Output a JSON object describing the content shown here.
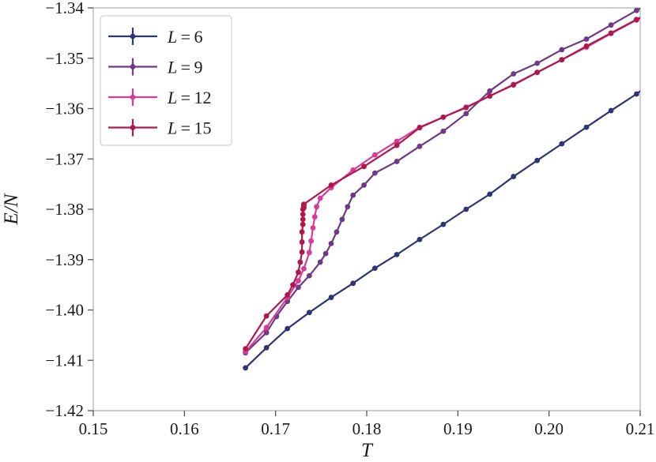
{
  "chart_data": {
    "type": "line",
    "title": "",
    "xlabel": "T",
    "ylabel": "E/N",
    "xlim": [
      0.15,
      0.21
    ],
    "ylim": [
      -1.42,
      -1.34
    ],
    "xticks": [
      0.15,
      0.16,
      0.17,
      0.18,
      0.19,
      0.2,
      0.21
    ],
    "xtick_labels": [
      "0.15",
      "0.16",
      "0.17",
      "0.18",
      "0.19",
      "0.20",
      "0.21"
    ],
    "yticks": [
      -1.42,
      -1.41,
      -1.4,
      -1.39,
      -1.38,
      -1.37,
      -1.36,
      -1.35,
      -1.34
    ],
    "ytick_labels": [
      "-1.42",
      "-1.41",
      "-1.40",
      "-1.39",
      "-1.38",
      "-1.37",
      "-1.36",
      "-1.35",
      "-1.34"
    ],
    "grid": false,
    "legend_position": "top-left",
    "series": [
      {
        "name": "L = 6",
        "legend_var": "L",
        "legend_val": "6",
        "color": "#2f3472",
        "x": [
          0.1667,
          0.169,
          0.1713,
          0.1737,
          0.1761,
          0.1785,
          0.1809,
          0.1833,
          0.1858,
          0.1884,
          0.1909,
          0.1935,
          0.1961,
          0.1987,
          0.2014,
          0.2041,
          0.2068,
          0.2096,
          0.2124
        ],
        "y": [
          -1.4115,
          -1.4075,
          -1.4037,
          -1.4005,
          -1.3975,
          -1.3947,
          -1.3917,
          -1.389,
          -1.386,
          -1.383,
          -1.38,
          -1.377,
          -1.3735,
          -1.3703,
          -1.367,
          -1.3637,
          -1.3604,
          -1.3571,
          -1.3533
        ]
      },
      {
        "name": "L = 9",
        "legend_var": "L",
        "legend_val": "9",
        "color": "#6e3a86",
        "x": [
          0.1667,
          0.169,
          0.1701,
          0.1713,
          0.1725,
          0.1737,
          0.1749,
          0.1755,
          0.1761,
          0.1767,
          0.1773,
          0.1779,
          0.1785,
          0.1797,
          0.1809,
          0.1833,
          0.1858,
          0.1884,
          0.1909,
          0.1935,
          0.1961,
          0.1987,
          0.2014,
          0.2041,
          0.2068,
          0.2096,
          0.2124
        ],
        "y": [
          -1.4085,
          -1.4045,
          -1.4013,
          -1.3983,
          -1.3955,
          -1.3932,
          -1.3905,
          -1.3888,
          -1.3868,
          -1.3845,
          -1.382,
          -1.3795,
          -1.3772,
          -1.3752,
          -1.3728,
          -1.3705,
          -1.3675,
          -1.3645,
          -1.361,
          -1.3565,
          -1.3531,
          -1.351,
          -1.3483,
          -1.3462,
          -1.3434,
          -1.3405,
          -1.3378
        ]
      },
      {
        "name": "L = 12",
        "legend_var": "L",
        "legend_val": "12",
        "color": "#d63d95",
        "x": [
          0.1667,
          0.169,
          0.1713,
          0.1725,
          0.1731,
          0.1737,
          0.1739,
          0.1741,
          0.1743,
          0.1745,
          0.1749,
          0.1761,
          0.1785,
          0.1809,
          0.1833,
          0.1858,
          0.1884,
          0.1909,
          0.1935,
          0.1961,
          0.1987,
          0.2014,
          0.2041,
          0.2068,
          0.2096,
          0.2124
        ],
        "y": [
          -1.4083,
          -1.4035,
          -1.3975,
          -1.3942,
          -1.3918,
          -1.3886,
          -1.3863,
          -1.3837,
          -1.3815,
          -1.3795,
          -1.3778,
          -1.3757,
          -1.3722,
          -1.3692,
          -1.3665,
          -1.3637,
          -1.3617,
          -1.3597,
          -1.3575,
          -1.3552,
          -1.3528,
          -1.3503,
          -1.3478,
          -1.3451,
          -1.3424,
          -1.3398
        ]
      },
      {
        "name": "L = 15",
        "legend_var": "L",
        "legend_val": "15",
        "color": "#b0174d",
        "x": [
          0.1667,
          0.169,
          0.1713,
          0.1719,
          0.1725,
          0.1727,
          0.1729,
          0.1729,
          0.1729,
          0.173,
          0.173,
          0.173,
          0.173,
          0.1731,
          0.1731,
          0.1731,
          0.1731,
          0.1761,
          0.1797,
          0.1833,
          0.1858,
          0.1884,
          0.1909,
          0.1935,
          0.1961,
          0.1987,
          0.2014,
          0.2041,
          0.2068,
          0.2096,
          0.2124
        ],
        "y": [
          -1.4077,
          -1.4012,
          -1.397,
          -1.395,
          -1.3925,
          -1.3905,
          -1.3885,
          -1.3865,
          -1.3845,
          -1.383,
          -1.382,
          -1.381,
          -1.38,
          -1.3797,
          -1.3795,
          -1.3792,
          -1.379,
          -1.3752,
          -1.3715,
          -1.3673,
          -1.3638,
          -1.3617,
          -1.3598,
          -1.3575,
          -1.3553,
          -1.3528,
          -1.3503,
          -1.3476,
          -1.345,
          -1.3423,
          -1.3398
        ]
      }
    ]
  }
}
